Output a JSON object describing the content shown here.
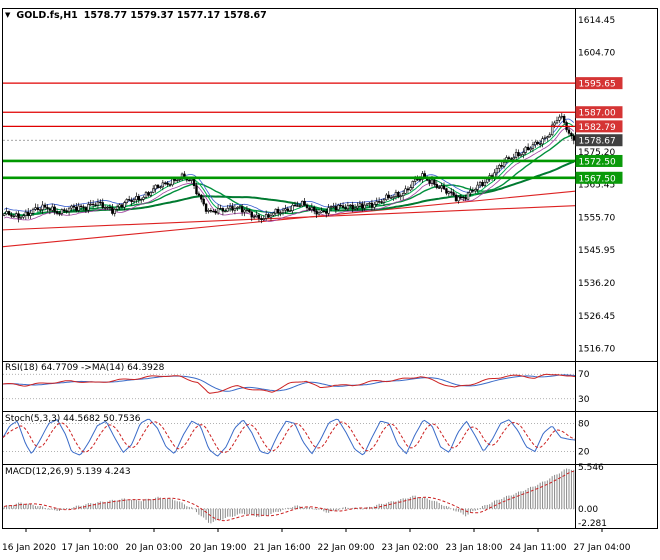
{
  "header": {
    "dropdown_icon": "▼",
    "symbol": "GOLD.fs,H1",
    "ohlc_text": "1578.77 1579.37 1577.17 1578.67"
  },
  "chart_data": {
    "type": "candlestick",
    "title": "GOLD.fs,H1",
    "symbol": "GOLD.fs",
    "timeframe": "H1",
    "ohlc": {
      "open": 1578.77,
      "high": 1579.37,
      "low": 1577.17,
      "close": 1578.67
    },
    "y_axis": {
      "min": 1513.0,
      "max": 1618.0,
      "ticks": [
        1614.45,
        1604.7,
        1575.2,
        1565.45,
        1555.7,
        1545.95,
        1536.2,
        1526.45,
        1516.7
      ]
    },
    "x_labels": [
      "16 Jan 2020",
      "17 Jan 10:00",
      "20 Jan 03:00",
      "20 Jan 19:00",
      "21 Jan 16:00",
      "22 Jan 09:00",
      "23 Jan 02:00",
      "23 Jan 18:00",
      "24 Jan 11:00",
      "27 Jan 04:00"
    ],
    "lines": {
      "resistance": [
        {
          "price": 1595.65,
          "label": "1595.65"
        },
        {
          "price": 1587.0,
          "label": "1587.00"
        },
        {
          "price": 1582.79,
          "label": "1582.79"
        }
      ],
      "support": [
        {
          "price": 1572.5,
          "label": "1572.50"
        },
        {
          "price": 1567.5,
          "label": "1567.50"
        }
      ],
      "bid": {
        "price": 1578.67,
        "label": "1578.67"
      },
      "trend": [
        {
          "x1": 0,
          "p1": 1547.0,
          "x2": 1,
          "p2": 1563.5
        },
        {
          "x1": 0,
          "p1": 1552.0,
          "x2": 1,
          "p2": 1559.2
        }
      ]
    },
    "bars": 238,
    "close_path": [
      [
        0,
        1556.8
      ],
      [
        0.02,
        1555.6
      ],
      [
        0.05,
        1557.8
      ],
      [
        0.08,
        1558.6
      ],
      [
        0.1,
        1557.2
      ],
      [
        0.13,
        1558.8
      ],
      [
        0.16,
        1559.6
      ],
      [
        0.19,
        1558.2
      ],
      [
        0.22,
        1560.4
      ],
      [
        0.25,
        1562.6
      ],
      [
        0.27,
        1564.6
      ],
      [
        0.29,
        1566.4
      ],
      [
        0.31,
        1567.6
      ],
      [
        0.33,
        1566.2
      ],
      [
        0.345,
        1561.5
      ],
      [
        0.36,
        1556.8
      ],
      [
        0.38,
        1557.8
      ],
      [
        0.4,
        1559.0
      ],
      [
        0.42,
        1557.6
      ],
      [
        0.44,
        1556.2
      ],
      [
        0.46,
        1555.6
      ],
      [
        0.48,
        1557.2
      ],
      [
        0.5,
        1558.6
      ],
      [
        0.52,
        1559.4
      ],
      [
        0.54,
        1558.2
      ],
      [
        0.56,
        1557.2
      ],
      [
        0.58,
        1558.6
      ],
      [
        0.6,
        1559.4
      ],
      [
        0.62,
        1558.4
      ],
      [
        0.64,
        1559.6
      ],
      [
        0.66,
        1560.6
      ],
      [
        0.68,
        1561.6
      ],
      [
        0.7,
        1563.2
      ],
      [
        0.72,
        1566.2
      ],
      [
        0.735,
        1567.8
      ],
      [
        0.75,
        1566.6
      ],
      [
        0.765,
        1564.6
      ],
      [
        0.78,
        1562.8
      ],
      [
        0.795,
        1561.6
      ],
      [
        0.81,
        1562.2
      ],
      [
        0.825,
        1563.8
      ],
      [
        0.84,
        1565.8
      ],
      [
        0.855,
        1568.4
      ],
      [
        0.87,
        1570.8
      ],
      [
        0.885,
        1572.8
      ],
      [
        0.9,
        1574.6
      ],
      [
        0.915,
        1575.8
      ],
      [
        0.93,
        1576.8
      ],
      [
        0.945,
        1578.6
      ],
      [
        0.955,
        1580.6
      ],
      [
        0.965,
        1583.6
      ],
      [
        0.975,
        1585.8
      ],
      [
        0.985,
        1582.8
      ],
      [
        0.993,
        1580.2
      ],
      [
        1,
        1578.67
      ]
    ],
    "indicators": {
      "rsi": {
        "label": "RSI(18) 64.7709 ->MA(14) 64.3928",
        "value": 64.7709,
        "ma_value": 64.3928,
        "levels": [
          70,
          30
        ],
        "range": [
          15,
          85
        ],
        "path": [
          [
            0,
            54
          ],
          [
            0.04,
            51
          ],
          [
            0.08,
            57
          ],
          [
            0.12,
            59
          ],
          [
            0.16,
            55
          ],
          [
            0.2,
            61
          ],
          [
            0.24,
            64
          ],
          [
            0.28,
            67
          ],
          [
            0.31,
            66
          ],
          [
            0.34,
            58
          ],
          [
            0.36,
            38
          ],
          [
            0.385,
            44
          ],
          [
            0.41,
            50
          ],
          [
            0.44,
            45
          ],
          [
            0.47,
            42
          ],
          [
            0.5,
            54
          ],
          [
            0.53,
            59
          ],
          [
            0.555,
            47
          ],
          [
            0.58,
            54
          ],
          [
            0.61,
            51
          ],
          [
            0.64,
            57
          ],
          [
            0.67,
            59
          ],
          [
            0.7,
            63
          ],
          [
            0.73,
            67
          ],
          [
            0.76,
            56
          ],
          [
            0.79,
            48
          ],
          [
            0.82,
            55
          ],
          [
            0.85,
            62
          ],
          [
            0.88,
            66
          ],
          [
            0.91,
            67
          ],
          [
            0.93,
            64
          ],
          [
            0.95,
            70
          ],
          [
            0.97,
            71
          ],
          [
            0.985,
            66
          ],
          [
            1,
            64.77
          ]
        ]
      },
      "stoch": {
        "label": "Stoch(5,3,3) 44.5682 50.7536",
        "value": 44.5682,
        "signal_value": 50.7536,
        "levels": [
          80,
          20
        ],
        "range": [
          0,
          100
        ],
        "path": [
          [
            0,
            50
          ],
          [
            0.012,
            75
          ],
          [
            0.025,
            85
          ],
          [
            0.04,
            35
          ],
          [
            0.05,
            15
          ],
          [
            0.065,
            45
          ],
          [
            0.08,
            80
          ],
          [
            0.095,
            88
          ],
          [
            0.11,
            55
          ],
          [
            0.12,
            20
          ],
          [
            0.135,
            12
          ],
          [
            0.15,
            40
          ],
          [
            0.165,
            75
          ],
          [
            0.18,
            85
          ],
          [
            0.195,
            50
          ],
          [
            0.21,
            18
          ],
          [
            0.225,
            35
          ],
          [
            0.24,
            80
          ],
          [
            0.255,
            90
          ],
          [
            0.27,
            70
          ],
          [
            0.285,
            30
          ],
          [
            0.3,
            15
          ],
          [
            0.315,
            55
          ],
          [
            0.33,
            85
          ],
          [
            0.345,
            75
          ],
          [
            0.36,
            25
          ],
          [
            0.375,
            10
          ],
          [
            0.39,
            30
          ],
          [
            0.405,
            70
          ],
          [
            0.42,
            88
          ],
          [
            0.435,
            60
          ],
          [
            0.45,
            20
          ],
          [
            0.465,
            15
          ],
          [
            0.48,
            55
          ],
          [
            0.495,
            85
          ],
          [
            0.51,
            80
          ],
          [
            0.525,
            40
          ],
          [
            0.54,
            15
          ],
          [
            0.555,
            45
          ],
          [
            0.57,
            82
          ],
          [
            0.585,
            90
          ],
          [
            0.6,
            60
          ],
          [
            0.615,
            25
          ],
          [
            0.63,
            12
          ],
          [
            0.645,
            50
          ],
          [
            0.66,
            85
          ],
          [
            0.675,
            80
          ],
          [
            0.69,
            35
          ],
          [
            0.705,
            15
          ],
          [
            0.72,
            55
          ],
          [
            0.735,
            88
          ],
          [
            0.75,
            75
          ],
          [
            0.765,
            30
          ],
          [
            0.78,
            18
          ],
          [
            0.795,
            60
          ],
          [
            0.81,
            85
          ],
          [
            0.825,
            55
          ],
          [
            0.84,
            20
          ],
          [
            0.855,
            45
          ],
          [
            0.87,
            80
          ],
          [
            0.885,
            88
          ],
          [
            0.9,
            65
          ],
          [
            0.915,
            30
          ],
          [
            0.93,
            20
          ],
          [
            0.945,
            60
          ],
          [
            0.96,
            75
          ],
          [
            0.975,
            50
          ],
          [
            0.99,
            46
          ],
          [
            1,
            44.57
          ]
        ]
      },
      "macd": {
        "label": "MACD(12,26,9) 5.139 4.243",
        "value": 5.139,
        "signal_value": 4.243,
        "axis": [
          "5.546",
          "0.00",
          "-2.281"
        ],
        "range": [
          -2.281,
          5.546
        ],
        "path": [
          [
            0,
            0.3
          ],
          [
            0.03,
            0.8
          ],
          [
            0.06,
            0.4
          ],
          [
            0.09,
            -0.3
          ],
          [
            0.12,
            0.2
          ],
          [
            0.15,
            0.7
          ],
          [
            0.18,
            1.0
          ],
          [
            0.21,
            1.3
          ],
          [
            0.24,
            1.1
          ],
          [
            0.27,
            1.5
          ],
          [
            0.3,
            1.2
          ],
          [
            0.33,
            0.1
          ],
          [
            0.36,
            -1.9
          ],
          [
            0.39,
            -1.2
          ],
          [
            0.42,
            -0.6
          ],
          [
            0.45,
            -1.1
          ],
          [
            0.48,
            -0.4
          ],
          [
            0.51,
            0.4
          ],
          [
            0.54,
            0.1
          ],
          [
            0.57,
            -0.5
          ],
          [
            0.6,
            0.2
          ],
          [
            0.63,
            0.0
          ],
          [
            0.66,
            0.6
          ],
          [
            0.69,
            1.1
          ],
          [
            0.72,
            1.7
          ],
          [
            0.75,
            1.2
          ],
          [
            0.78,
            0.2
          ],
          [
            0.81,
            -0.9
          ],
          [
            0.84,
            0.3
          ],
          [
            0.87,
            1.3
          ],
          [
            0.9,
            2.1
          ],
          [
            0.93,
            3.0
          ],
          [
            0.95,
            3.7
          ],
          [
            0.97,
            4.6
          ],
          [
            0.99,
            5.4
          ],
          [
            1,
            5.14
          ]
        ]
      }
    },
    "colors": {
      "resistance_line": "#e00000",
      "resistance_badge": "#d53434",
      "support_line": "#009800",
      "support_badge": "#0a9a0a",
      "bid_badge": "#404040",
      "bid_line": "#888888",
      "trend_line": "#dd2222",
      "candle_up": "#ffffff",
      "candle_down": "#000000",
      "candle_outline": "#000000",
      "ma_fast": "#00b050",
      "ma_mid": "#00903c",
      "ma_slow": "#007a30",
      "band_upper": "#3a5fd0",
      "band_lower": "#a040a0",
      "rsi_line": "#cc2222",
      "rsi_ma": "#3a6bc8",
      "stoch_main": "#3a6bc8",
      "stoch_signal": "#cc2222",
      "macd_hist": "#8a8a8a",
      "macd_signal": "#cc2222",
      "level_dotted": "#999999",
      "axis_text": "#000000",
      "separator": "#000000"
    }
  }
}
